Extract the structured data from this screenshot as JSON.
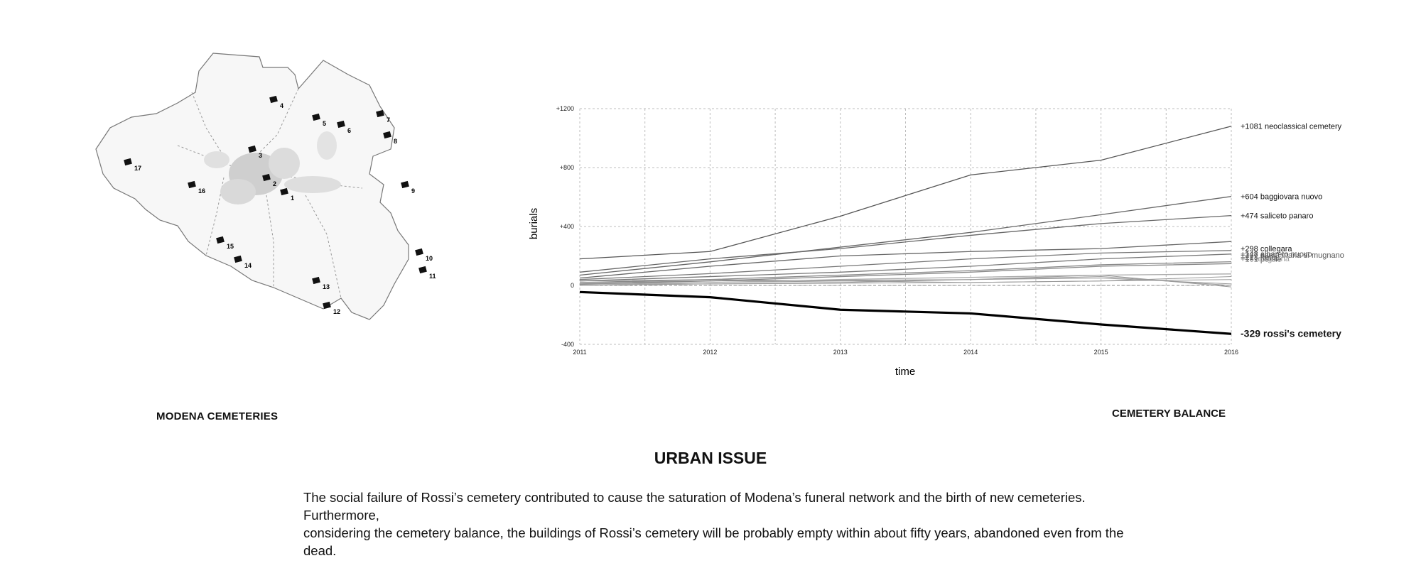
{
  "map": {
    "caption": "MODENA CEMETERIES",
    "markers": [
      "1",
      "2",
      "3",
      "4",
      "5",
      "6",
      "7",
      "8",
      "9",
      "10",
      "11",
      "12",
      "13",
      "14",
      "15",
      "16",
      "17"
    ]
  },
  "chart_caption": "CEMETERY BALANCE",
  "chart_data": {
    "type": "line",
    "title": "",
    "xlabel": "time",
    "ylabel": "burials",
    "x": [
      2011,
      2012,
      2013,
      2014,
      2015,
      2016
    ],
    "ylim": [
      -400,
      1200
    ],
    "yticks": [
      "+1200",
      "+800",
      "+400",
      "0",
      "-400"
    ],
    "grid": true,
    "series": [
      {
        "name": "+1081 neoclassical cemetery",
        "values": [
          180,
          230,
          470,
          750,
          850,
          1081
        ],
        "color": "#555555"
      },
      {
        "name": "+604 baggiovara nuovo",
        "values": [
          70,
          160,
          260,
          360,
          480,
          604
        ],
        "color": "#666666"
      },
      {
        "name": "+474 saliceto panaro",
        "values": [
          90,
          180,
          250,
          340,
          420,
          474
        ],
        "color": "#666666"
      },
      {
        "name": "+298 collegara",
        "values": [
          50,
          130,
          200,
          230,
          250,
          298
        ],
        "color": "#666666"
      },
      {
        "name": "+237 santa maria di mugnano",
        "values": [
          40,
          80,
          130,
          180,
          220,
          237
        ],
        "color": "#777777"
      },
      {
        "name": "+213 freto",
        "values": [
          30,
          60,
          90,
          130,
          180,
          213
        ],
        "color": "#777777"
      },
      {
        "name": "+161 portile",
        "values": [
          20,
          40,
          70,
          100,
          140,
          161
        ],
        "color": "#888888"
      },
      {
        "name": "+148 albareto nuovo",
        "values": [
          10,
          30,
          60,
          90,
          130,
          148
        ],
        "color": "#888888"
      },
      {
        "name": "+78 lesignana",
        "values": [
          0,
          20,
          40,
          55,
          70,
          78
        ],
        "color": "#aaaaaa"
      },
      {
        "name": "-329 rossi's cemetery",
        "values": [
          -45,
          -80,
          -165,
          -190,
          -265,
          -329
        ],
        "color": "#000000"
      }
    ],
    "minor_series": [
      [
        10,
        20,
        30,
        40,
        70,
        -10
      ],
      [
        0,
        10,
        20,
        40,
        60,
        0
      ],
      [
        20,
        30,
        35,
        40,
        50,
        10
      ],
      [
        30,
        40,
        30,
        20,
        30,
        60
      ],
      [
        5,
        10,
        15,
        20,
        30,
        40
      ]
    ]
  },
  "section": {
    "title": "URBAN ISSUE",
    "body_line1": "The social failure of Rossi’s cemetery contributed to cause the saturation of Modena’s funeral network and the birth of new cemeteries. Furthermore,",
    "body_line2": "considering the cemetery balance, the buildings of Rossi’s cemetery will be probably empty within about fifty years, abandoned even from the dead."
  }
}
